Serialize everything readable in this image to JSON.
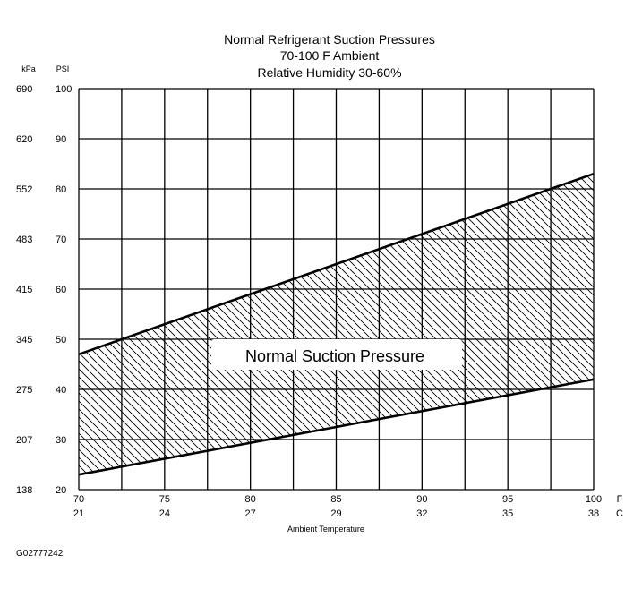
{
  "chart_data": {
    "type": "area",
    "title": [
      "Normal Refrigerant Suction Pressures",
      "70-100 F Ambient",
      "Relative Humidity 30-60%"
    ],
    "xlabel": "Ambient Temperature",
    "x_units": [
      "F",
      "C"
    ],
    "y_units": [
      "kPa",
      "PSI"
    ],
    "xlim": [
      70,
      100
    ],
    "ylim": [
      20,
      100
    ],
    "x_ticks_f": [
      70,
      75,
      80,
      85,
      90,
      95,
      100
    ],
    "x_ticks_c": [
      21,
      24,
      27,
      29,
      32,
      35,
      38
    ],
    "y_ticks_psi": [
      20,
      30,
      40,
      50,
      60,
      70,
      80,
      90,
      100
    ],
    "y_ticks_kpa": [
      138,
      207,
      275,
      345,
      415,
      483,
      552,
      620,
      690
    ],
    "x_gridlines": [
      70,
      72.5,
      75,
      77.5,
      80,
      82.5,
      85,
      87.5,
      90,
      92.5,
      95,
      97.5,
      100
    ],
    "grid": true,
    "series": [
      {
        "role": "upper_limit",
        "x": [
          70,
          100
        ],
        "y": [
          47,
          83
        ]
      },
      {
        "role": "lower_limit",
        "x": [
          70,
          100
        ],
        "y": [
          23,
          42
        ]
      }
    ],
    "band_label": "Normal Suction Pressure",
    "hatch": "diagonal"
  },
  "figure_id": "G02777242"
}
